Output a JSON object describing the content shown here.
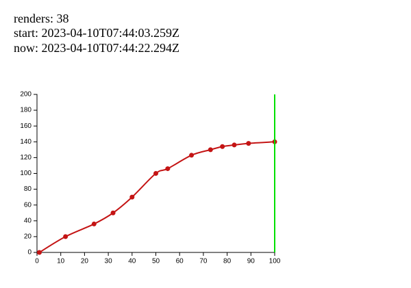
{
  "header": {
    "lines": [
      "renders: 38",
      "start: 2023-04-10T07:44:03.259Z",
      "now: 2023-04-10T07:44:22.294Z"
    ]
  },
  "chart_data": {
    "type": "line",
    "x": [
      1,
      12,
      24,
      32,
      40,
      50,
      55,
      65,
      73,
      78,
      83,
      89,
      100
    ],
    "series": [
      {
        "color": "#c41414",
        "values": [
          0,
          20,
          36,
          50,
          70,
          100,
          106,
          123,
          130,
          134,
          136,
          138,
          140
        ]
      }
    ],
    "xlim": [
      0,
      100
    ],
    "xticks": [
      0,
      10,
      20,
      30,
      40,
      50,
      60,
      70,
      80,
      90,
      100
    ],
    "ylim": [
      0,
      200
    ],
    "yticks": [
      0,
      20,
      40,
      60,
      80,
      100,
      120,
      140,
      160,
      180,
      200
    ],
    "vline": {
      "x": 100,
      "color": "#00e000"
    }
  }
}
